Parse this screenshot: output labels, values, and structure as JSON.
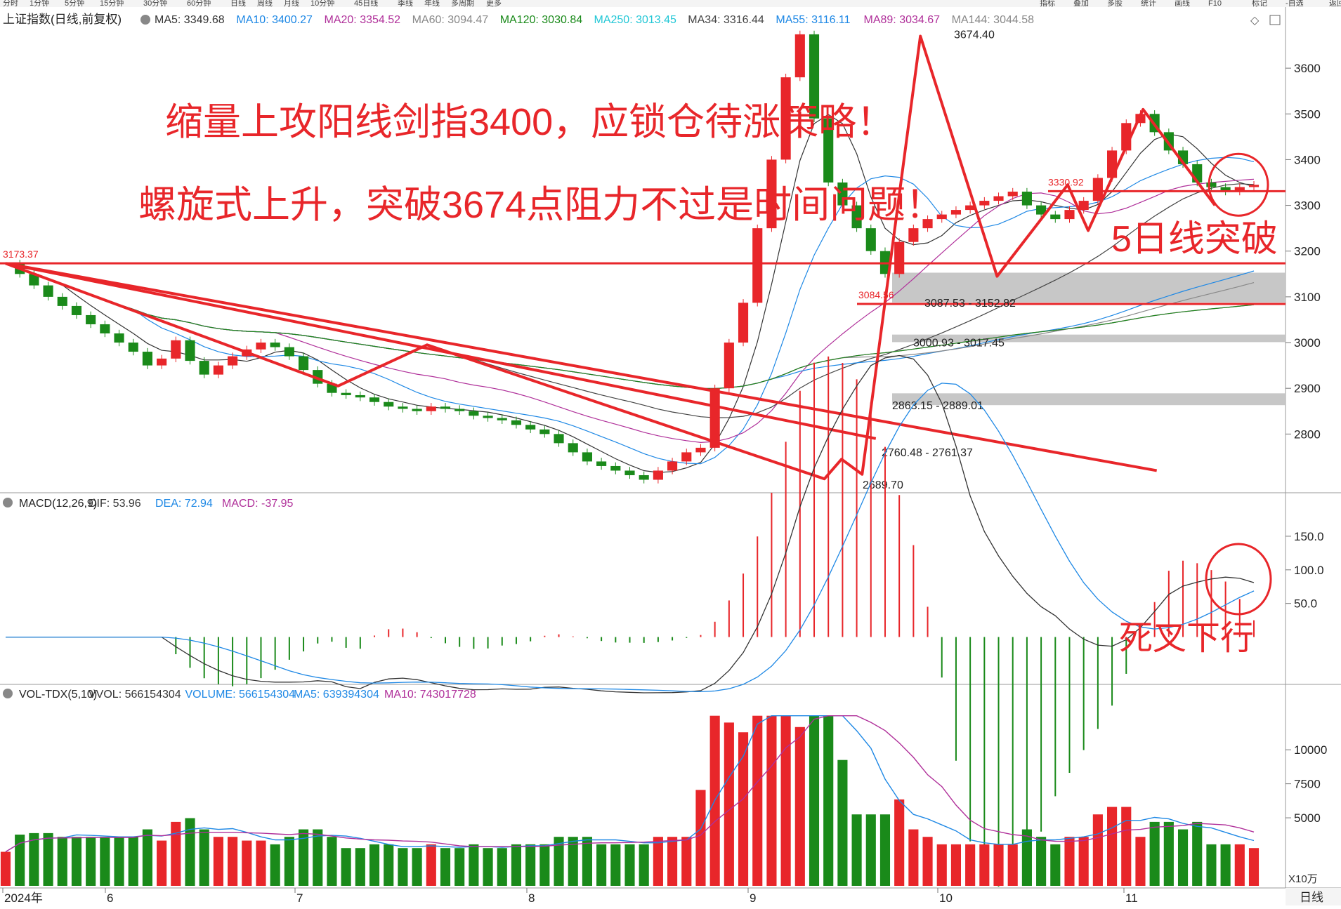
{
  "chart_data": {
    "type": "candlestick-with-indicators",
    "title": "上证指数(日线,前复权)",
    "toolbar": [
      "分时",
      "1分钟",
      "5分钟",
      "15分钟",
      "30分钟",
      "60分钟",
      "日线",
      "周线",
      "月线",
      "10分钟",
      "45日线",
      "季线",
      "年线",
      "多周期",
      "更多"
    ],
    "toolbar_right": [
      "指标",
      "叠加",
      "多股",
      "统计",
      "画线",
      "F10",
      "标记",
      "-自选",
      "返回"
    ],
    "ma_legend": [
      {
        "label": "MA5: 3349.68",
        "color": "#333333"
      },
      {
        "label": "MA10: 3400.27",
        "color": "#1e88e5"
      },
      {
        "label": "MA20: 3354.52",
        "color": "#b0309a"
      },
      {
        "label": "MA60: 3094.47",
        "color": "#888888"
      },
      {
        "label": "MA120: 3030.84",
        "color": "#1a8a1a"
      },
      {
        "label": "MA250: 3013.45",
        "color": "#22c7d6"
      },
      {
        "label": "MA34: 3316.44",
        "color": "#444444"
      },
      {
        "label": "MA55: 3116.11",
        "color": "#1e88e5"
      },
      {
        "label": "MA89: 3034.67",
        "color": "#b0309a"
      },
      {
        "label": "MA144: 3044.58",
        "color": "#888888"
      }
    ],
    "price_axis": {
      "ticks": [
        2800,
        2900,
        3000,
        3100,
        3200,
        3300,
        3400,
        3500,
        3600
      ],
      "ylim": [
        2690,
        3680
      ]
    },
    "x_axis_labels": [
      "2024年",
      "6",
      "7",
      "8",
      "9",
      "10",
      "11"
    ],
    "timeframe_label": "日线",
    "price_path": [
      3173,
      3150,
      3125,
      3100,
      3080,
      3060,
      3040,
      3020,
      3000,
      2980,
      2950,
      2965,
      3005,
      2960,
      2930,
      2950,
      2970,
      2985,
      3000,
      2990,
      2970,
      2940,
      2910,
      2890,
      2885,
      2880,
      2870,
      2860,
      2855,
      2850,
      2860,
      2855,
      2850,
      2840,
      2835,
      2830,
      2820,
      2810,
      2800,
      2780,
      2760,
      2740,
      2730,
      2720,
      2710,
      2700,
      2720,
      2740,
      2760,
      2770,
      2900,
      3000,
      3087,
      3250,
      3400,
      3580,
      3674,
      3490,
      3350,
      3300,
      3250,
      3200,
      3150,
      3220,
      3250,
      3270,
      3280,
      3290,
      3300,
      3310,
      3320,
      3330,
      3300,
      3280,
      3270,
      3290,
      3310,
      3360,
      3420,
      3480,
      3500,
      3460,
      3420,
      3390,
      3350,
      3340,
      3330,
      3340,
      3345
    ],
    "key_levels": [
      {
        "label": "3173.37",
        "value": 3173.37
      },
      {
        "label": "3084.56",
        "value": 3084.56
      },
      {
        "label": "3330.92",
        "value": 3330.92
      }
    ],
    "price_annotations": [
      {
        "label": "3674.40",
        "value": 3674.4
      },
      {
        "label": "2689.70",
        "value": 2689.7
      },
      {
        "label": "3087.53 - 3152.82",
        "value": 3087.53
      },
      {
        "label": "3000.93 - 3017.45",
        "value": 3000.93
      },
      {
        "label": "2863.15 - 2889.01",
        "value": 2863.15
      },
      {
        "label": "2760.48 - 2761.37",
        "value": 2760.48
      }
    ],
    "gap_zones": [
      [
        3087.53,
        3152.82
      ],
      [
        3000.93,
        3017.45
      ],
      [
        2863.15,
        2889.01
      ]
    ],
    "annotations_text": {
      "line1": "缩量上攻阳线剑指3400，应锁仓待涨策略！",
      "line2": "螺旋式上升，突破3674点阻力不过是时间问题！",
      "ma5_break": "5日线突破",
      "death_cross": "死叉下行"
    },
    "macd": {
      "label": "MACD(12,26,9)",
      "legend": [
        {
          "label": "DIF: 53.96",
          "color": "#333333"
        },
        {
          "label": "DEA: 72.94",
          "color": "#1e88e5"
        },
        {
          "label": "MACD: -37.95",
          "color": "#b0309a"
        }
      ],
      "ticks": [
        50,
        100,
        150
      ],
      "ylim": [
        -60,
        175
      ]
    },
    "volume": {
      "label": "VOL-TDX(5,10)",
      "legend": [
        {
          "label": "VVOL: 566154304",
          "color": "#333333"
        },
        {
          "label": "VOLUME: 566154304",
          "color": "#1e88e5"
        },
        {
          "label": "MA5: 639394304",
          "color": "#1e88e5"
        },
        {
          "label": "MA10: 743017728",
          "color": "#b0309a"
        }
      ],
      "ticks": [
        5000,
        7500,
        10000
      ],
      "unit_label": "X10万",
      "ylim": [
        0,
        13000
      ]
    }
  }
}
